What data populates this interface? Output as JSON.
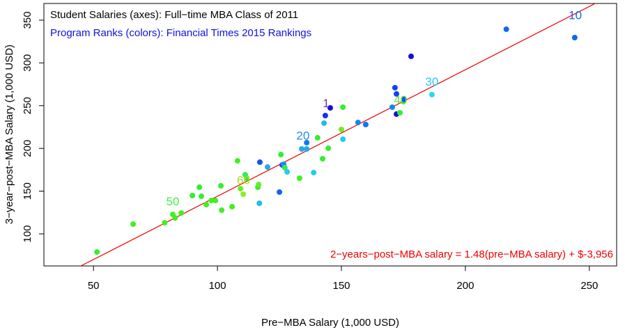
{
  "chart_data": {
    "type": "scatter",
    "title": "Student Salaries (axes):  Full−time MBA Class of 2011",
    "subtitle": "Program Ranks (colors):  Financial Times 2015 Rankings",
    "x_label": "Pre−MBA Salary (1,000 USD)",
    "y_label": "3−year−post−MBA Salary (1,000 USD)",
    "xlim": [
      30,
      261
    ],
    "ylim": [
      62.5,
      369.5
    ],
    "xticks": [
      50,
      100,
      150,
      200,
      250
    ],
    "yticks": [
      100,
      150,
      200,
      250,
      300,
      350
    ],
    "fit": {
      "label": "2−years−post−MBA salary = 1.48(pre−MBA salary) + $-3,956",
      "slope": 1.48,
      "intercept": -3.956,
      "color": "#ee0000"
    },
    "series": [
      {
        "x": [
          51.4,
          66,
          78.7,
          82,
          82.9,
          85.4,
          89.9,
          92.7,
          93.5,
          95.5,
          97.5,
          99.2,
          101.4,
          101.7,
          105.9,
          108.1,
          109.3,
          110.4,
          111.2,
          111.8,
          116.3,
          116.6,
          116.9,
          117.1,
          120.2,
          125,
          125.6,
          126.1,
          126.7,
          127.2,
          128.1,
          133.1,
          134,
          136,
          136,
          138.8,
          140.4,
          142.4,
          143,
          143.5,
          144.7,
          145.5,
          150,
          150.6,
          150.6,
          156.7,
          159.8,
          170.5,
          171.6,
          172.2,
          172.2,
          173.6,
          175,
          175.3,
          178.1,
          186.5,
          216.5,
          244.1
        ],
        "values": [
          78.8,
          111.4,
          113,
          122.8,
          118.7,
          124.4,
          144.8,
          154.6,
          144,
          134.2,
          139,
          139,
          156.2,
          127.7,
          131.8,
          185.5,
          152.9,
          146.4,
          169.2,
          165.1,
          154.6,
          157.8,
          135.8,
          183.9,
          178.2,
          148.9,
          192.8,
          180.6,
          181.4,
          177.4,
          172.5,
          165.1,
          199.3,
          199.3,
          206.7,
          171.7,
          212.4,
          187.9,
          229.5,
          238.4,
          200.2,
          247.4,
          222.1,
          248.2,
          210.7,
          230.3,
          227.9,
          248.2,
          271,
          263.7,
          240.1,
          241.7,
          254.7,
          257.2,
          307.7,
          262.9,
          339.4,
          329.6
        ],
        "colors": [
          "#33ee33",
          "#44ee22",
          "#44ee22",
          "#44ee22",
          "#44ee22",
          "#44ee22",
          "#33ee33",
          "#33ee33",
          "#33ee33",
          "#44ee22",
          "#44ee22",
          "#44ee22",
          "#33ee33",
          "#44ee22",
          "#44ee22",
          "#44ee22",
          "#66ee22",
          "#88ee22",
          "#33ee55",
          "#33ee33",
          "#33ee33",
          "#66ee22",
          "#22bbee",
          "#1155ee",
          "#22aaee",
          "#1166ee",
          "#33ee33",
          "#1155ee",
          "#2288ee",
          "#33ee55",
          "#22ccee",
          "#44ee22",
          "#22aaee",
          "#22aaee",
          "#1177ee",
          "#22ccee",
          "#33ee33",
          "#33ee33",
          "#22bbee",
          "#1133ee",
          "#33ee33",
          "#1111dd",
          "#66ee22",
          "#33ee33",
          "#22ccee",
          "#1188ee",
          "#1177ee",
          "#1188ee",
          "#1144ee",
          "#1144ee",
          "#1111dd",
          "#33ee33",
          "#33ee33",
          "#1155ee",
          "#1111dd",
          "#22ddee",
          "#1166ee",
          "#1166ee"
        ]
      }
    ],
    "annotations": [
      {
        "text": "1",
        "x": 143.8,
        "y": 252,
        "color": "#6633cc"
      },
      {
        "text": "10",
        "x": 244.3,
        "y": 355,
        "color": "#1166ee"
      },
      {
        "text": "20",
        "x": 134.5,
        "y": 214,
        "color": "#2288ee"
      },
      {
        "text": "30",
        "x": 186.5,
        "y": 277,
        "color": "#22ccee"
      },
      {
        "text": "40",
        "x": 173.8,
        "y": 256,
        "color": "#66dd44"
      },
      {
        "text": "50",
        "x": 82,
        "y": 137,
        "color": "#44ee44"
      },
      {
        "text": "60",
        "x": 110.5,
        "y": 162,
        "color": "#aadd22"
      }
    ]
  }
}
